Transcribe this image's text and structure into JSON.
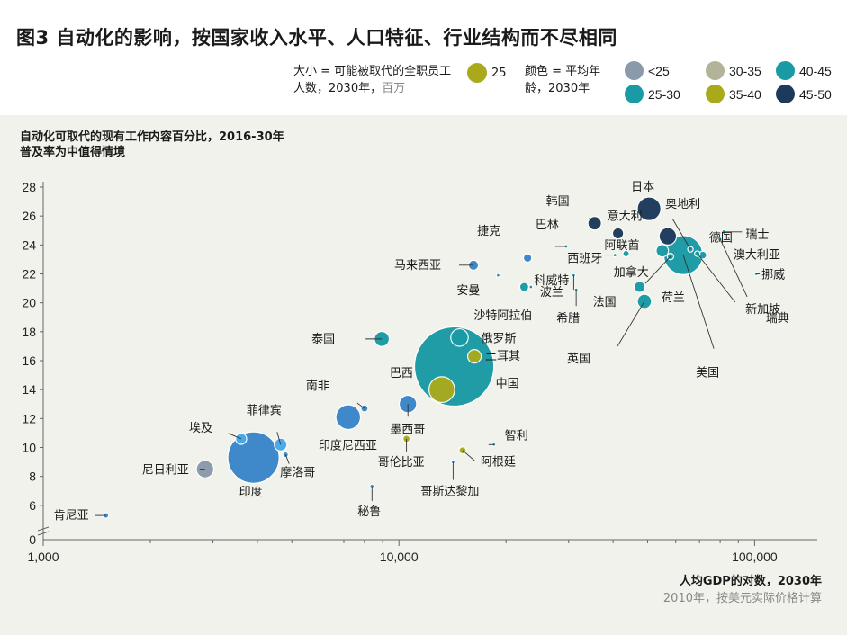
{
  "title": "图3 自动化的影响，按国家收入水平、人口特征、行业结构而不尽相同",
  "legend": {
    "size_text": "大小 = 可能被取代的全职员工人数，2030年，",
    "size_unit": "百万",
    "size_value": "25",
    "color_text": "颜色 = 平均年龄，2030年",
    "colors": [
      {
        "label": "<25",
        "color": "#8a9aaa"
      },
      {
        "label": "30-35",
        "color": "#b3b39a"
      },
      {
        "label": "40-45",
        "color": "#1a9aa5"
      },
      {
        "label": "25-30",
        "color": "#1a9aa5"
      },
      {
        "label": "35-40",
        "color": "#a8aa1c"
      },
      {
        "label": "45-50",
        "color": "#1c3a5c"
      }
    ]
  },
  "chart_title_1": "自动化可取代的现有工作内容百分比，2016-30年",
  "chart_title_2": "普及率为中值得情境",
  "xlabel": "人均GDP的对数，2030年",
  "xsub": "2010年，按美元实际价格计算",
  "chart_data": {
    "type": "scatter",
    "title": "自动化可取代的现有工作内容百分比，2016-30年",
    "subtitle": "普及率为中值得情境",
    "xlabel": "人均GDP的对数，2030年",
    "xlabel_note": "2010年，按美元实际价格计算",
    "x_scale": "log",
    "xlim": [
      1000,
      150000
    ],
    "ylim": [
      4,
      28
    ],
    "x_ticks": [
      {
        "v": 1000,
        "label": "1,000"
      },
      {
        "v": 10000,
        "label": "10,000"
      },
      {
        "v": 100000,
        "label": "100,000"
      }
    ],
    "y_ticks": [
      6,
      8,
      10,
      12,
      14,
      16,
      18,
      20,
      22,
      24,
      26,
      28
    ],
    "y_extra_tick": "0",
    "points": [
      {
        "name": "肯尼亚",
        "x": 1500,
        "y": 5.3,
        "size": 0.3,
        "color": "#3a85c8"
      },
      {
        "name": "尼日利亚",
        "x": 2850,
        "y": 8.5,
        "size": 3,
        "color": "#8a9aaa"
      },
      {
        "name": "埃及",
        "x": 3600,
        "y": 10.6,
        "size": 1.2,
        "color": "#4aa9e8"
      },
      {
        "name": "印度",
        "x": 3900,
        "y": 9.3,
        "size": 26,
        "color": "#3a85c8"
      },
      {
        "name": "菲律宾",
        "x": 4650,
        "y": 10.2,
        "size": 1.6,
        "color": "#4aa9e8"
      },
      {
        "name": "摩洛哥",
        "x": 4800,
        "y": 9.5,
        "size": 0.3,
        "color": "#3a85c8"
      },
      {
        "name": "印度尼西亚",
        "x": 7200,
        "y": 12.1,
        "size": 6,
        "color": "#3a85c8"
      },
      {
        "name": "南非",
        "x": 8000,
        "y": 12.7,
        "size": 0.5,
        "color": "#3a85c8"
      },
      {
        "name": "秘鲁",
        "x": 8400,
        "y": 7.3,
        "size": 0.2,
        "color": "#3a85c8"
      },
      {
        "name": "泰国",
        "x": 8950,
        "y": 17.5,
        "size": 2.2,
        "color": "#1a9aa5"
      },
      {
        "name": "墨西哥",
        "x": 10600,
        "y": 13.0,
        "size": 3,
        "color": "#3a85c8"
      },
      {
        "name": "哥伦比亚",
        "x": 10500,
        "y": 10.6,
        "size": 0.5,
        "color": "#a8aa1c"
      },
      {
        "name": "巴西",
        "x": 13200,
        "y": 14.0,
        "size": 6.5,
        "color": "#a8aa1c"
      },
      {
        "name": "中国",
        "x": 14300,
        "y": 15.6,
        "size": 62,
        "color": "#1a9aa5"
      },
      {
        "name": "俄罗斯",
        "x": 14800,
        "y": 17.6,
        "size": 3,
        "color": "#1a9aa5"
      },
      {
        "name": "土耳其",
        "x": 16300,
        "y": 16.3,
        "size": 1.8,
        "color": "#a8aa1c"
      },
      {
        "name": "阿根廷",
        "x": 15100,
        "y": 9.8,
        "size": 0.5,
        "color": "#a8aa1c"
      },
      {
        "name": "哥斯达黎加",
        "x": 14200,
        "y": 9.0,
        "size": 0.05,
        "color": "#3a85c8"
      },
      {
        "name": "智利",
        "x": 18500,
        "y": 10.2,
        "size": 0.05,
        "color": "#1a9aa5"
      },
      {
        "name": "马来西亚",
        "x": 16200,
        "y": 22.6,
        "size": 1,
        "color": "#3a85c8"
      },
      {
        "name": "安曼",
        "x": 19000,
        "y": 21.9,
        "size": 0.05,
        "color": "#3a85c8"
      },
      {
        "name": "沙特阿拉伯",
        "x": 22500,
        "y": 21.1,
        "size": 0.8,
        "color": "#1a9aa5"
      },
      {
        "name": "捷克",
        "x": 23000,
        "y": 23.1,
        "size": 0.7,
        "color": "#3a85c8"
      },
      {
        "name": "波兰",
        "x": 23500,
        "y": 21.1,
        "size": 0.1,
        "color": "#1a9aa5"
      },
      {
        "name": "巴林",
        "x": 29500,
        "y": 23.9,
        "size": 0.1,
        "color": "#1a9aa5"
      },
      {
        "name": "科威特",
        "x": 31000,
        "y": 21.9,
        "size": 0.05,
        "color": "#1a9aa5"
      },
      {
        "name": "希腊",
        "x": 31500,
        "y": 20.9,
        "size": 0.05,
        "color": "#1a9aa5"
      },
      {
        "name": "韩国",
        "x": 35500,
        "y": 25.5,
        "size": 1.8,
        "color": "#1c3a5c"
      },
      {
        "name": "西班牙",
        "x": 40500,
        "y": 23.3,
        "size": 0.05,
        "color": "#1a9aa5"
      },
      {
        "name": "意大利",
        "x": 41300,
        "y": 24.8,
        "size": 1.2,
        "color": "#1c3a5c"
      },
      {
        "name": "法国",
        "x": 47500,
        "y": 21.1,
        "size": 1.2,
        "color": "#1a9aa5"
      },
      {
        "name": "阿联酋",
        "x": 43500,
        "y": 23.4,
        "size": 0.4,
        "color": "#1a9aa5"
      },
      {
        "name": "英国",
        "x": 49000,
        "y": 20.1,
        "size": 2,
        "color": "#1a9aa5"
      },
      {
        "name": "日本",
        "x": 50500,
        "y": 26.5,
        "size": 5.5,
        "color": "#1c3a5c"
      },
      {
        "name": "加拿大",
        "x": 55000,
        "y": 23.6,
        "size": 1.5,
        "color": "#1a9aa5"
      },
      {
        "name": "德国",
        "x": 57000,
        "y": 24.6,
        "size": 3,
        "color": "#1c3a5c"
      },
      {
        "name": "荷兰",
        "x": 58000,
        "y": 23.2,
        "size": 0.4,
        "color": "#1a9aa5"
      },
      {
        "name": "美国",
        "x": 63000,
        "y": 23.3,
        "size": 15,
        "color": "#1a9aa5"
      },
      {
        "name": "奥地利",
        "x": 66000,
        "y": 23.7,
        "size": 0.3,
        "color": "#1a9aa5"
      },
      {
        "name": "瑞典",
        "x": 69000,
        "y": 23.4,
        "size": 0.3,
        "color": "#1a9aa5"
      },
      {
        "name": "澳大利亚",
        "x": 71500,
        "y": 23.3,
        "size": 0.6,
        "color": "#1a9aa5"
      },
      {
        "name": "新加坡",
        "x": 80000,
        "y": 24.4,
        "size": 0.05,
        "color": "#1a9aa5"
      },
      {
        "name": "瑞士",
        "x": 82000,
        "y": 24.9,
        "size": 0.2,
        "color": "#1a9aa5"
      },
      {
        "name": "挪威",
        "x": 101000,
        "y": 22.0,
        "size": 0.1,
        "color": "#1a9aa5"
      }
    ]
  }
}
